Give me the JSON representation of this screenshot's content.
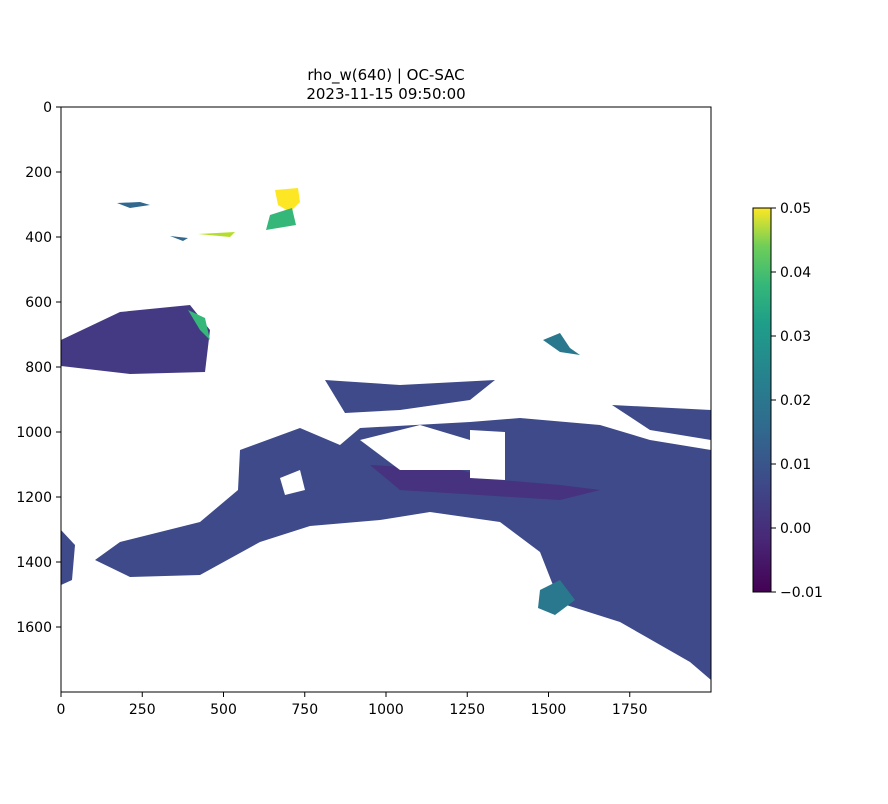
{
  "chart_data": {
    "type": "image",
    "title": "rho_w(640) | OC-SAC",
    "subtitle": "2023-11-15 09:50:00",
    "xlim": [
      0,
      2000
    ],
    "xticks": [
      0,
      250,
      500,
      750,
      1000,
      1250,
      1500,
      1750
    ],
    "ylim": [
      1800,
      0
    ],
    "yticks": [
      0,
      200,
      400,
      600,
      800,
      1000,
      1200,
      1400,
      1600
    ],
    "colorbar": {
      "lim": [
        -0.01,
        0.05
      ],
      "colormap": "viridis",
      "ticks": [
        {
          "value": -0.01,
          "label": "−0.01"
        },
        {
          "value": 0,
          "label": "0.00"
        },
        0.01,
        0.02,
        0.03,
        0.04,
        0.05
      ]
    }
  }
}
